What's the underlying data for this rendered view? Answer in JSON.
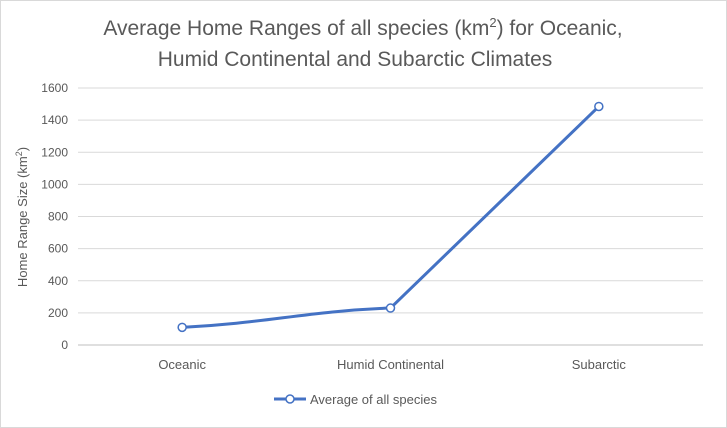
{
  "chart_data": {
    "type": "line",
    "title_line1_pre": "Average Home Ranges of all species (km",
    "title_sup": "2",
    "title_line1_post": ") for Oceanic,",
    "title_line2": "Humid Continental and Subarctic Climates",
    "ylabel_pre": "Home Range Size (km",
    "ylabel_sup": "2",
    "ylabel_post": ")",
    "xlabel": "",
    "categories": [
      "Oceanic",
      "Humid Continental",
      "Subarctic"
    ],
    "series": [
      {
        "name": "Average of all species",
        "values": [
          110,
          230,
          1485
        ],
        "color": "#4472C4"
      }
    ],
    "ylim": [
      0,
      1600
    ],
    "yticks": [
      0,
      200,
      400,
      600,
      800,
      1000,
      1200,
      1400,
      1600
    ],
    "grid": true,
    "legend_position": "bottom"
  }
}
